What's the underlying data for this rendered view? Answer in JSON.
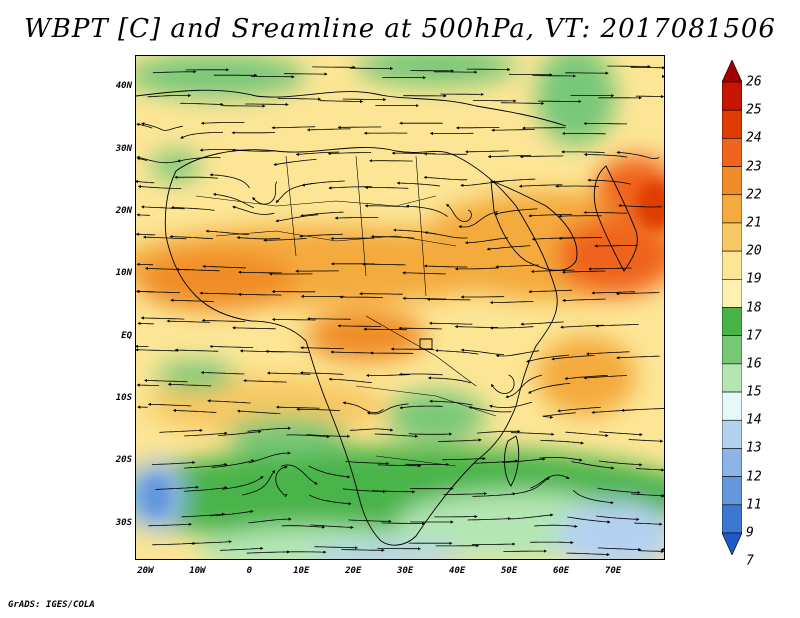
{
  "title": "WBPT [C] and Sreamline at 500hPa, VT: 2017081506",
  "credit": "GrADS: IGES/COLA",
  "map": {
    "lon_range": [
      -22,
      80
    ],
    "lat_range": [
      -36,
      45
    ],
    "lat_ticks": [
      {
        "value": 40,
        "label": "40N"
      },
      {
        "value": 30,
        "label": "30N"
      },
      {
        "value": 20,
        "label": "20N"
      },
      {
        "value": 10,
        "label": "10N"
      },
      {
        "value": 0,
        "label": "EQ"
      },
      {
        "value": -10,
        "label": "10S"
      },
      {
        "value": -20,
        "label": "20S"
      },
      {
        "value": -30,
        "label": "30S"
      }
    ],
    "lon_ticks": [
      {
        "value": -20,
        "label": "20W"
      },
      {
        "value": -10,
        "label": "10W"
      },
      {
        "value": 0,
        "label": "0"
      },
      {
        "value": 10,
        "label": "10E"
      },
      {
        "value": 20,
        "label": "20E"
      },
      {
        "value": 30,
        "label": "30E"
      },
      {
        "value": 40,
        "label": "40E"
      },
      {
        "value": 50,
        "label": "50E"
      },
      {
        "value": 60,
        "label": "60E"
      },
      {
        "value": 70,
        "label": "70E"
      }
    ]
  },
  "colorbar": {
    "levels": [
      "26",
      "25",
      "24",
      "23",
      "22",
      "21",
      "20",
      "19",
      "18",
      "17",
      "16",
      "15",
      "14",
      "13",
      "12",
      "11",
      "9",
      "7"
    ],
    "colors": [
      "#a00000",
      "#c81400",
      "#e03c00",
      "#f0641e",
      "#f08c28",
      "#f4aa3c",
      "#f8c864",
      "#fce696",
      "#fff0b4",
      "#48b448",
      "#78c878",
      "#b4e6b4",
      "#e6f8f8",
      "#b4d2f0",
      "#8cb4e6",
      "#6496dc",
      "#3c78d2",
      "#1e5ac8"
    ]
  }
}
